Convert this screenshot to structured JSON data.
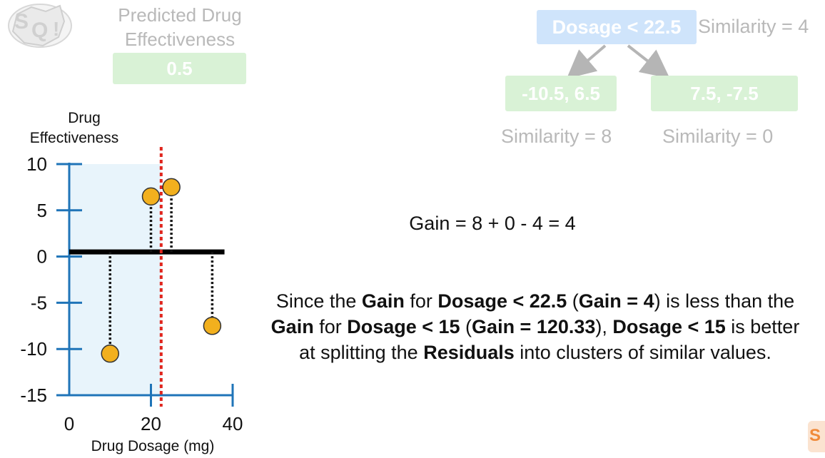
{
  "top_left": {
    "title_line1": "Predicted Drug",
    "title_line2": "Effectiveness",
    "predicted_value": "0.5"
  },
  "tree": {
    "root_label": "Dosage < 22.5",
    "root_similarity": "Similarity = 4",
    "left_leaf": "-10.5, 6.5",
    "right_leaf": "7.5, -7.5",
    "left_similarity": "Similarity = 8",
    "right_similarity": "Similarity = 0"
  },
  "gain_equation": "Gain = 8 + 0 - 4 = 4",
  "explanation": {
    "p1": "Since the ",
    "b1": "Gain",
    "p2": " for ",
    "b2": "Dosage < 22.5",
    "p3": " (",
    "b3": "Gain = 4",
    "p4": ") is less than the ",
    "b4": "Gain",
    "p5": " for ",
    "b5": "Dosage < 15",
    "p6": " (",
    "b6": "Gain = 120.33",
    "p7": "), ",
    "b7": "Dosage < 15",
    "p8": " is better at splitting the ",
    "b8": "Residuals",
    "p9": " into clusters of similar values."
  },
  "colors": {
    "axis": "#1f74b8",
    "point_fill": "#f2b01e",
    "split_line": "#e0261e",
    "shade": "#e8f4fb",
    "leaf_green": "#d9f2d6",
    "root_blue": "#cfe4fb"
  },
  "chart_data": {
    "type": "scatter",
    "ylabel_line1": "Drug",
    "ylabel_line2": "Effectiveness",
    "xlabel": "Drug Dosage (mg)",
    "xlim": [
      0,
      40
    ],
    "ylim": [
      -15,
      10
    ],
    "x_ticks": [
      0,
      20,
      40
    ],
    "y_ticks": [
      10,
      5,
      0,
      -5,
      -10,
      -15
    ],
    "prediction_line": 0.5,
    "split_threshold": 22.5,
    "shaded_region_x": [
      0,
      22.5
    ],
    "points": [
      {
        "x": 10,
        "y": -10.5
      },
      {
        "x": 20,
        "y": 6.5
      },
      {
        "x": 25,
        "y": 7.5
      },
      {
        "x": 35,
        "y": -7.5
      }
    ]
  }
}
